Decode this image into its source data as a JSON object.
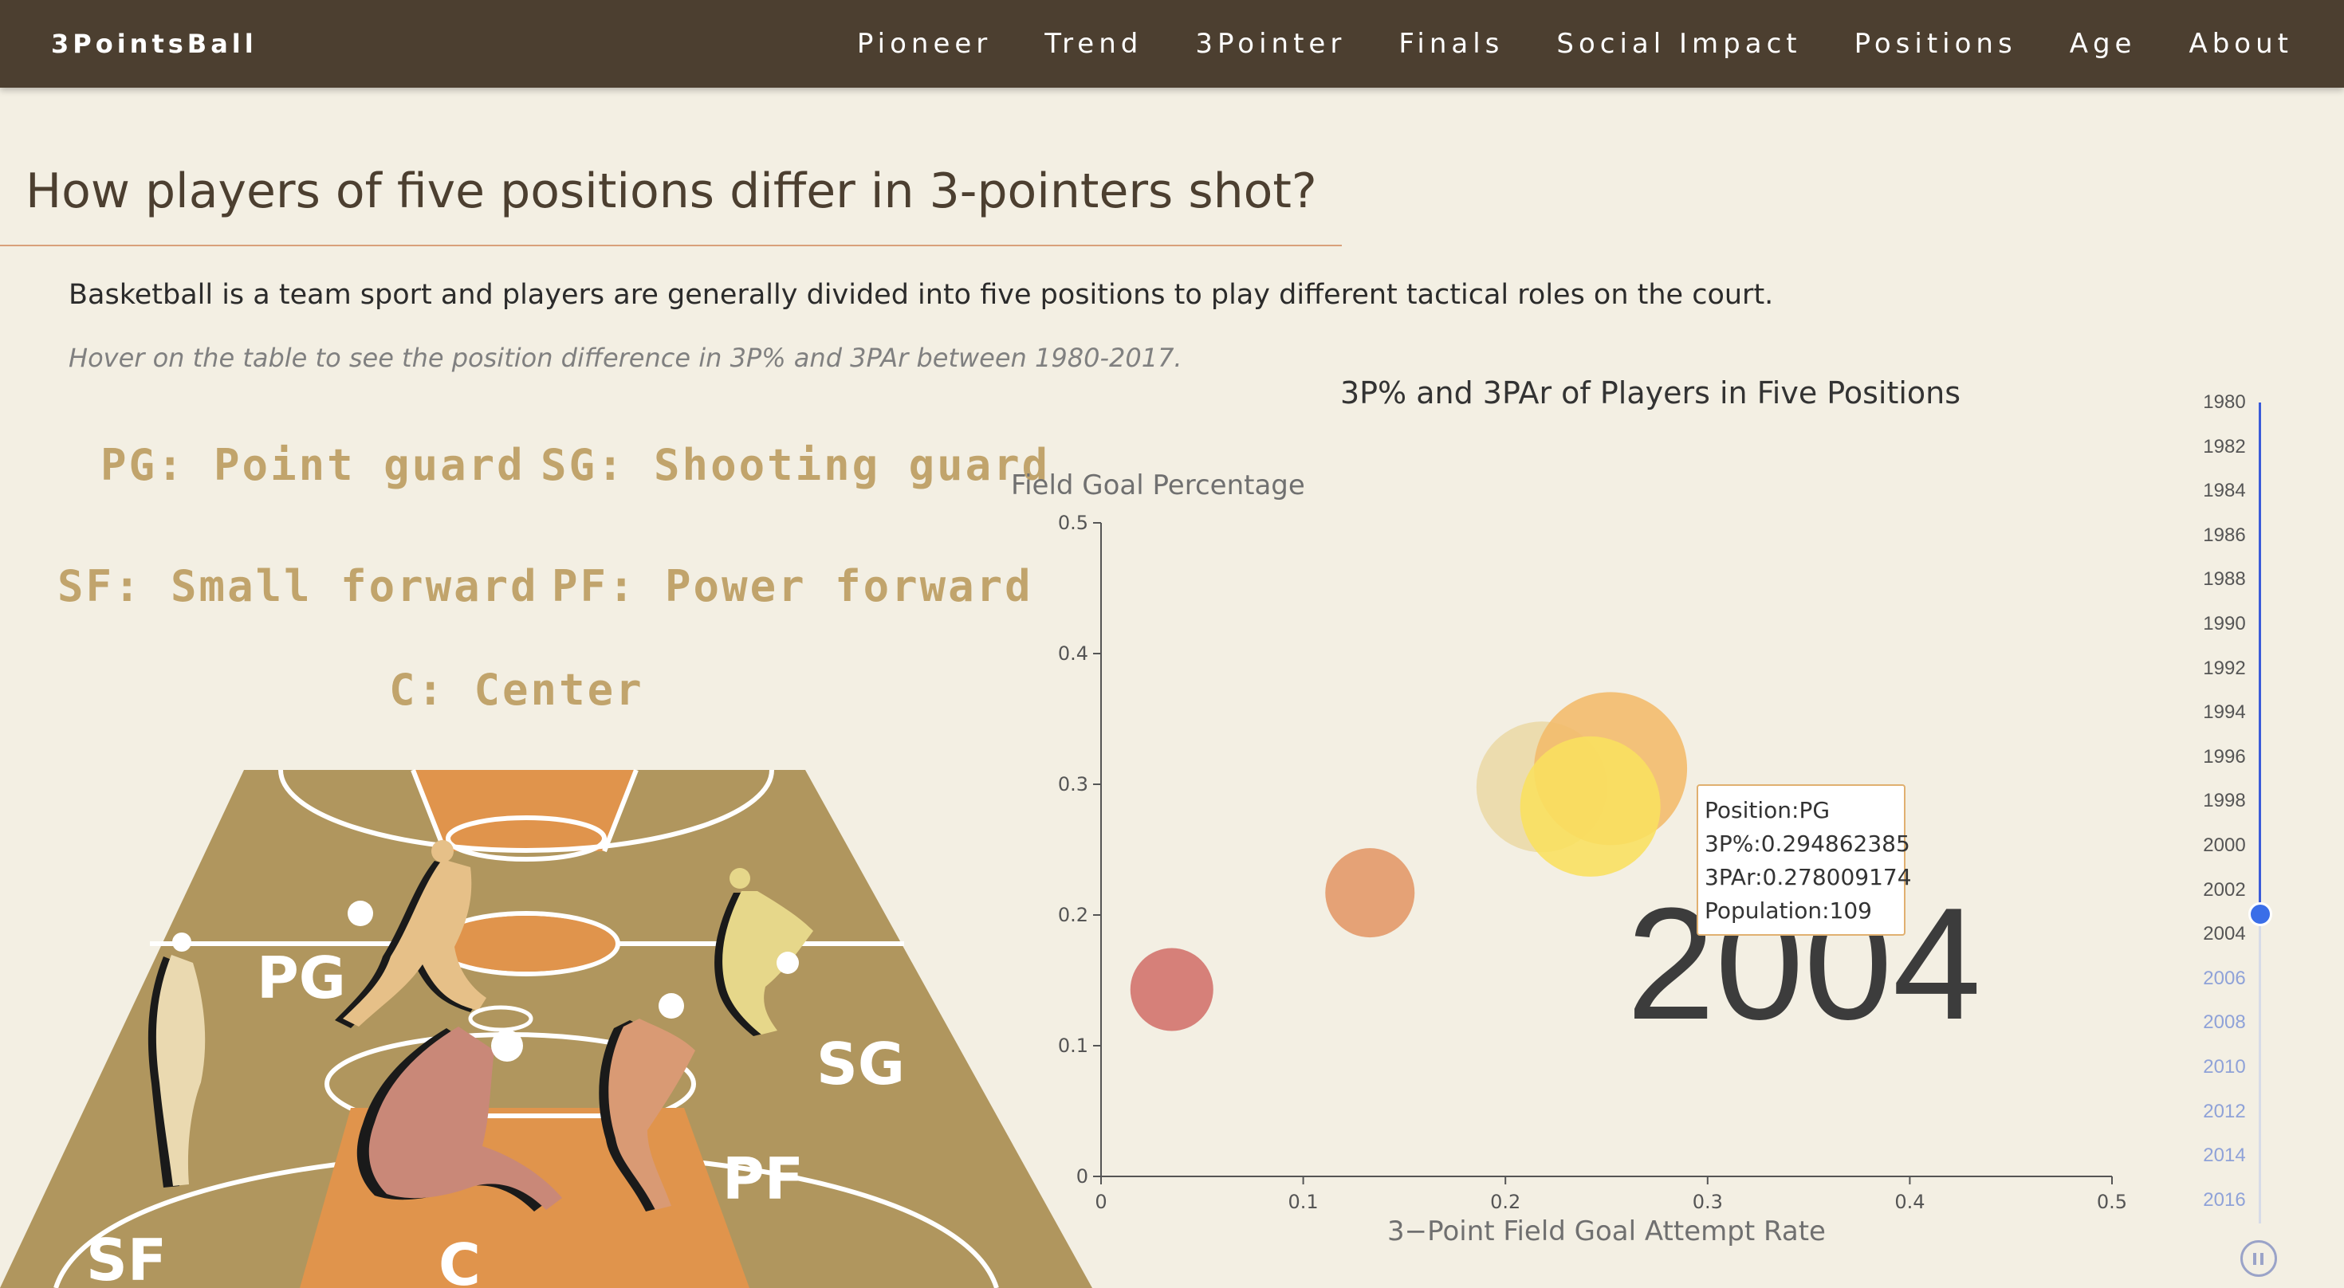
{
  "nav": {
    "brand": "3PointsBall",
    "items": [
      "Pioneer",
      "Trend",
      "3Pointer",
      "Finals",
      "Social Impact",
      "Positions",
      "Age",
      "About"
    ]
  },
  "page": {
    "title": "How players of five positions differ in 3-pointers shot?",
    "intro": "Basketball is a team sport and players are generally divided into five positions to play different tactical roles on the court.",
    "hint": "Hover on the table to see the position difference in 3P% and 3PAr between 1980-2017."
  },
  "positions": {
    "pg": "PG: Point guard",
    "sg": "SG: Shooting guard",
    "sf": "SF: Small forward",
    "pf": "PF: Power forward",
    "c": "C: Center"
  },
  "court": {
    "labels": {
      "pg": "PG",
      "sg": "SG",
      "sf": "SF",
      "pf": "PF",
      "c": "C"
    },
    "colors": {
      "court": "#b0965e",
      "paint": "#e0944c",
      "pg": "#e6c088",
      "sg": "#e6d78a",
      "sf": "#ead9b0",
      "pf": "#d99a74",
      "c": "#c98878"
    }
  },
  "chart_data": {
    "type": "scatter",
    "title": "3P% and 3PAr of Players in Five Positions",
    "xlabel": "3−Point Field Goal Attempt Rate",
    "ylabel": "Field Goal Percentage",
    "xlim": [
      0,
      0.5
    ],
    "ylim": [
      0,
      0.5
    ],
    "xticks": [
      "0",
      "0.1",
      "0.2",
      "0.3",
      "0.4",
      "0.5"
    ],
    "yticks": [
      "0",
      "0.1",
      "0.2",
      "0.3",
      "0.4",
      "0.5"
    ],
    "year": "2004",
    "points": [
      {
        "x": 0.035,
        "y": 0.143,
        "color": "#d2716a"
      },
      {
        "x": 0.133,
        "y": 0.217,
        "color": "#e29766"
      },
      {
        "x": 0.218,
        "y": 0.298,
        "color": "#ebd9a6"
      },
      {
        "x": 0.252,
        "y": 0.312,
        "color": "#f2bb6a"
      },
      {
        "x": 0.242,
        "y": 0.283,
        "color": "#f9e05e"
      }
    ],
    "tooltip": {
      "position": "Position:PG",
      "p3": "3P%:0.294862385",
      "par": "3PAr:0.278009174",
      "population": "Population:109"
    }
  },
  "timeline": {
    "years": [
      "1980",
      "1982",
      "1984",
      "1986",
      "1988",
      "1990",
      "1992",
      "1994",
      "1996",
      "1998",
      "2000",
      "2002",
      "2004",
      "2006",
      "2008",
      "2010",
      "2012",
      "2014",
      "2016"
    ],
    "current": "2004",
    "colors": {
      "active": "#555555",
      "inactive": "#8fa2d8",
      "fill": "#3a5bd9"
    }
  }
}
